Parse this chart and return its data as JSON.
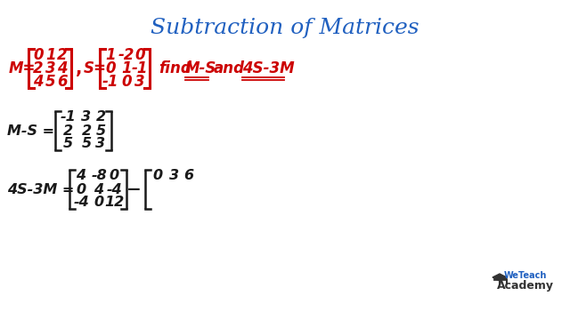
{
  "title": "Subtraction of Matrices",
  "title_color": "#2060c0",
  "title_fontsize": 18,
  "bg_color": "#ffffff",
  "red_color": "#cc0000",
  "black_color": "#1a1a1a",
  "M_rows": [
    [
      "0",
      "1",
      "2"
    ],
    [
      "2",
      "3",
      "4"
    ],
    [
      "4",
      "5",
      "6"
    ]
  ],
  "S_rows": [
    [
      "1",
      "-2",
      "0"
    ],
    [
      "0",
      "1",
      "-1"
    ],
    [
      "-1",
      "0",
      "3"
    ]
  ],
  "MS_rows": [
    [
      "-1",
      "3",
      "2"
    ],
    [
      "2",
      "2",
      "5"
    ],
    [
      "5",
      "5",
      "3"
    ]
  ],
  "S4_rows": [
    [
      "4",
      "-8",
      "0"
    ],
    [
      "0",
      "4",
      "-4"
    ],
    [
      "-4",
      "0",
      "12"
    ]
  ],
  "partial_row": [
    "0",
    "3",
    "6"
  ],
  "wta_color": "#2060c0",
  "wta_text_color": "#555555"
}
